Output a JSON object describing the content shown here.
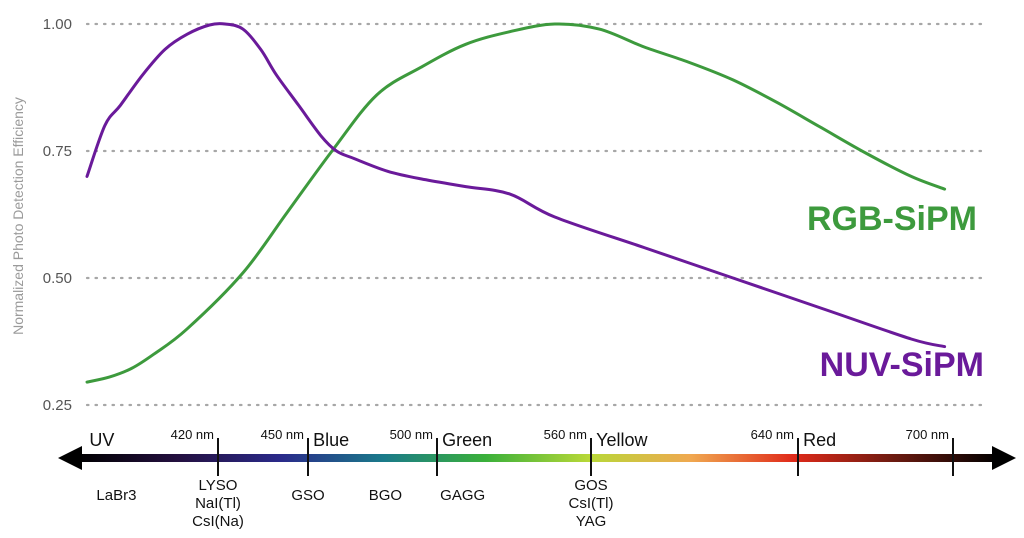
{
  "chart_data": {
    "type": "line",
    "title": "",
    "xlabel": "",
    "ylabel": "Normalized Photo Detection Efficiency",
    "ylim": [
      0.25,
      1.0
    ],
    "xlim": [
      350,
      750
    ],
    "yticks": [
      "0.25",
      "0.50",
      "0.75",
      "1.00"
    ],
    "grid": true,
    "series": [
      {
        "name": "RGB-SiPM",
        "color": "#3d9a3d",
        "x": [
          350,
          360,
          370,
          380,
          395,
          420,
          440,
          460,
          480,
          500,
          520,
          540,
          560,
          580,
          600,
          620,
          640,
          660,
          680,
          700,
          720,
          735
        ],
        "y": [
          0.295,
          0.305,
          0.322,
          0.35,
          0.4,
          0.51,
          0.63,
          0.75,
          0.86,
          0.915,
          0.96,
          0.985,
          1.0,
          0.99,
          0.955,
          0.925,
          0.89,
          0.845,
          0.795,
          0.745,
          0.7,
          0.675
        ]
      },
      {
        "name": "NUV-SiPM",
        "color": "#6a1a9a",
        "x": [
          350,
          358,
          365,
          375,
          385,
          395,
          405,
          412,
          420,
          428,
          435,
          445,
          455,
          462,
          470,
          485,
          500,
          520,
          540,
          560,
          600,
          640,
          680,
          720,
          735
        ],
        "y": [
          0.7,
          0.8,
          0.84,
          0.9,
          0.95,
          0.98,
          0.998,
          1.0,
          0.99,
          0.95,
          0.9,
          0.84,
          0.78,
          0.75,
          0.735,
          0.71,
          0.695,
          0.68,
          0.665,
          0.62,
          0.56,
          0.5,
          0.44,
          0.38,
          0.365
        ]
      }
    ]
  },
  "spectrum": {
    "nm_labels": [
      {
        "nm": 420,
        "label": "420 nm"
      },
      {
        "nm": 450,
        "label": "450 nm"
      },
      {
        "nm": 500,
        "label": "500 nm"
      },
      {
        "nm": 560,
        "label": "560 nm"
      },
      {
        "nm": 640,
        "label": "640 nm"
      },
      {
        "nm": 700,
        "label": "700 nm"
      }
    ],
    "bands": [
      {
        "label": "UV",
        "nm": 363
      },
      {
        "label": "Blue",
        "nm": 452
      },
      {
        "label": "Green",
        "nm": 502
      },
      {
        "label": "Yellow",
        "nm": 562
      },
      {
        "label": "Red",
        "nm": 642
      }
    ],
    "scintillators": [
      {
        "lines": [
          "LaBr3"
        ],
        "nm": 375
      },
      {
        "lines": [
          "LYSO",
          "NaI(Tl)",
          "CsI(Na)"
        ],
        "nm": 420
      },
      {
        "lines": [
          "GSO"
        ],
        "nm": 450
      },
      {
        "lines": [
          "BGO"
        ],
        "nm": 480
      },
      {
        "lines": [
          "GAGG"
        ],
        "nm": 510
      },
      {
        "lines": [
          "GOS",
          "CsI(Tl)",
          "YAG"
        ],
        "nm": 560
      }
    ],
    "gradient_colors": [
      "#000000",
      "#241040",
      "#2a2a8a",
      "#1a7a8a",
      "#3ab03a",
      "#b8d838",
      "#f0a850",
      "#e02a1a",
      "#6a1a10",
      "#000000"
    ]
  }
}
